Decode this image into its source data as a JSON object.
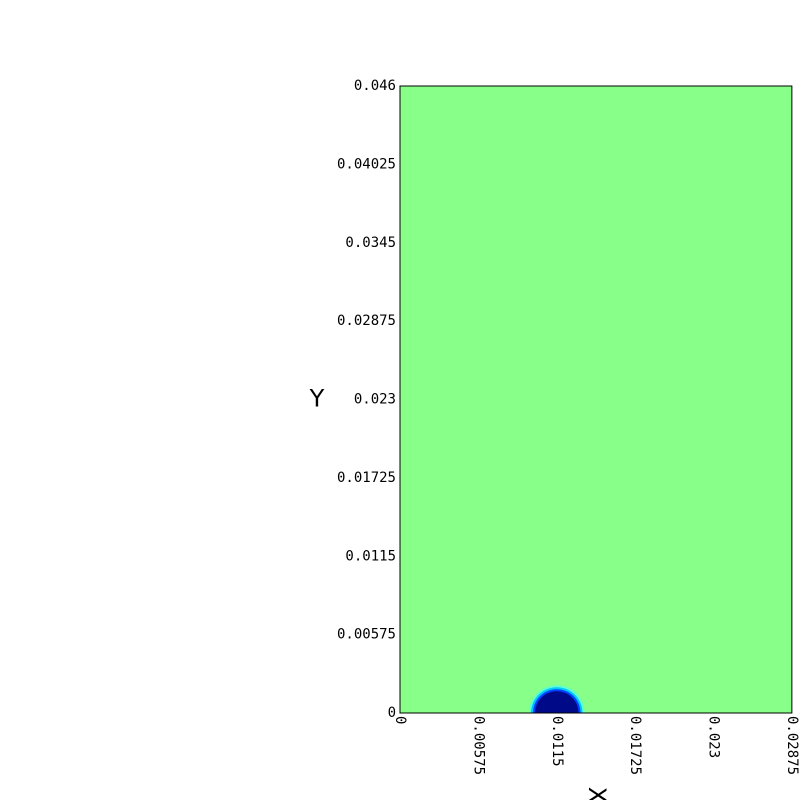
{
  "chart_data": {
    "type": "heatmap",
    "xlabel": "X",
    "ylabel": "Y",
    "xlim": [
      0,
      0.02875
    ],
    "ylim": [
      0,
      0.046
    ],
    "x_ticks": [
      0,
      0.00575,
      0.0115,
      0.01725,
      0.023,
      0.02875
    ],
    "x_tick_labels": [
      "0",
      "0.00575",
      "0.0115",
      "0.01725",
      "0.023",
      "0.02875"
    ],
    "y_ticks": [
      0,
      0.00575,
      0.0115,
      0.01725,
      0.023,
      0.02875,
      0.0345,
      0.04025,
      0.046
    ],
    "y_tick_labels": [
      "0",
      "0.00575",
      "0.0115",
      "0.01725",
      "0.023",
      "0.02875",
      "0.0345",
      "0.04025",
      "0.046"
    ],
    "grid": false,
    "background_color": "#88ff88",
    "features": [
      {
        "shape": "half-disc",
        "center": [
          0.0115,
          0
        ],
        "radius": 0.0016,
        "fill_color": "#000a88",
        "edge_colors": [
          "#0040ff",
          "#00c8ff",
          "#60ffd0"
        ]
      }
    ]
  }
}
